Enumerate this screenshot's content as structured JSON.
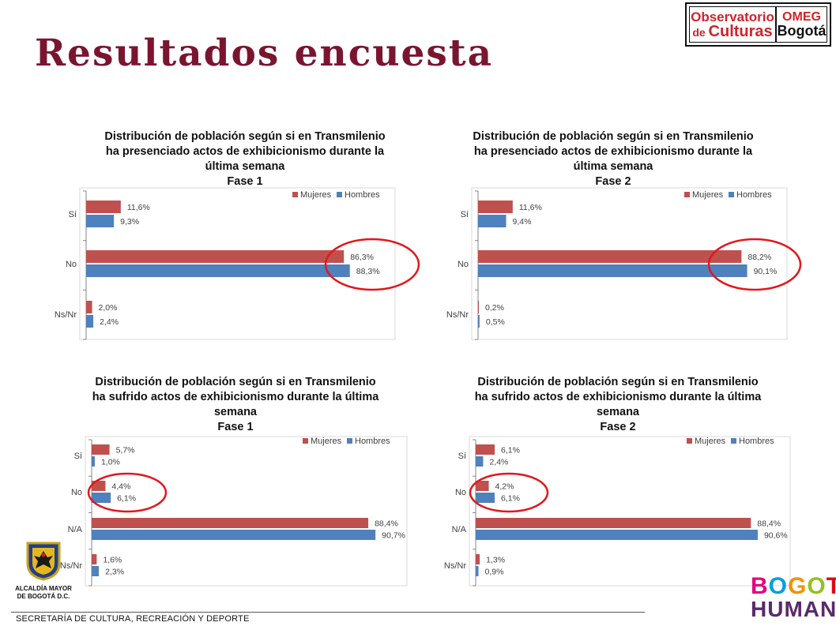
{
  "header": {
    "title": "Resultados encuesta",
    "logo": {
      "obs_line1": "Observatorio",
      "obs_line2_small": "de ",
      "obs_line2": "Culturas",
      "omeg_line1": "OMEG",
      "omeg_line2": "Bogotá"
    }
  },
  "footer": {
    "text": "SECRETARÍA DE CULTURA, RECREACIÓN Y DEPORTE",
    "alcaldia_line1": "ALCALDÍA MAYOR",
    "alcaldia_line2": "DE BOGOTÁ D.C.",
    "bogota_line1": "BOGOTÁ",
    "bogota_line2": "HUMANA"
  },
  "colors": {
    "mujeres": "#c0504d",
    "hombres": "#4f81bd",
    "highlight": "#e0181b",
    "title": "#7a1530"
  },
  "chart_data": [
    {
      "type": "bar",
      "orientation": "horizontal",
      "title_lines": [
        "Distribución de población según si en Transmilenio",
        "ha presenciado actos de exhibicionismo durante la",
        "última semana",
        "Fase 1"
      ],
      "categories": [
        "Sí",
        "No",
        "Ns/Nr"
      ],
      "series": [
        {
          "name": "Mujeres",
          "values": [
            11.6,
            86.3,
            2.0
          ],
          "labels": [
            "11,6%",
            "86,3%",
            "2,0%"
          ]
        },
        {
          "name": "Hombres",
          "values": [
            9.3,
            88.3,
            2.4
          ],
          "labels": [
            "9,3%",
            "88,3%",
            "2,4%"
          ]
        }
      ],
      "legend_position": "top-right",
      "highlight_category": "No",
      "grid": false
    },
    {
      "type": "bar",
      "orientation": "horizontal",
      "title_lines": [
        "Distribución de población según si en Transmilenio",
        "ha presenciado actos de exhibicionismo durante la",
        "última semana",
        "Fase 2"
      ],
      "categories": [
        "Sí",
        "No",
        "Ns/Nr"
      ],
      "series": [
        {
          "name": "Mujeres",
          "values": [
            11.6,
            88.2,
            0.2
          ],
          "labels": [
            "11,6%",
            "88,2%",
            "0,2%"
          ]
        },
        {
          "name": "Hombres",
          "values": [
            9.4,
            90.1,
            0.5
          ],
          "labels": [
            "9,4%",
            "90,1%",
            "0,5%"
          ]
        }
      ],
      "legend_position": "top-right",
      "highlight_category": "No",
      "grid": false
    },
    {
      "type": "bar",
      "orientation": "horizontal",
      "title_lines": [
        "Distribución de población según si en Transmilenio",
        "ha sufrido actos de exhibicionismo durante la última",
        "semana",
        "Fase 1"
      ],
      "categories": [
        "Sí",
        "No",
        "N/A",
        "Ns/Nr"
      ],
      "series": [
        {
          "name": "Mujeres",
          "values": [
            5.7,
            4.4,
            88.4,
            1.6
          ],
          "labels": [
            "5,7%",
            "4,4%",
            "88,4%",
            "1,6%"
          ]
        },
        {
          "name": "Hombres",
          "values": [
            1.0,
            6.1,
            90.7,
            2.3
          ],
          "labels": [
            "1,0%",
            "6,1%",
            "90,7%",
            "2,3%"
          ]
        }
      ],
      "legend_position": "top-right",
      "highlight_category": "No",
      "grid": false
    },
    {
      "type": "bar",
      "orientation": "horizontal",
      "title_lines": [
        "Distribución de población según si en Transmilenio",
        "ha sufrido actos de exhibicionismo durante la última",
        "semana",
        "Fase 2"
      ],
      "categories": [
        "Sí",
        "No",
        "N/A",
        "Ns/Nr"
      ],
      "series": [
        {
          "name": "Mujeres",
          "values": [
            6.1,
            4.2,
            88.4,
            1.3
          ],
          "labels": [
            "6,1%",
            "4,2%",
            "88,4%",
            "1,3%"
          ]
        },
        {
          "name": "Hombres",
          "values": [
            2.4,
            6.1,
            90.6,
            0.9
          ],
          "labels": [
            "2,4%",
            "6,1%",
            "90,6%",
            "0,9%"
          ]
        }
      ],
      "legend_position": "top-right",
      "highlight_category": "No",
      "grid": false
    }
  ]
}
